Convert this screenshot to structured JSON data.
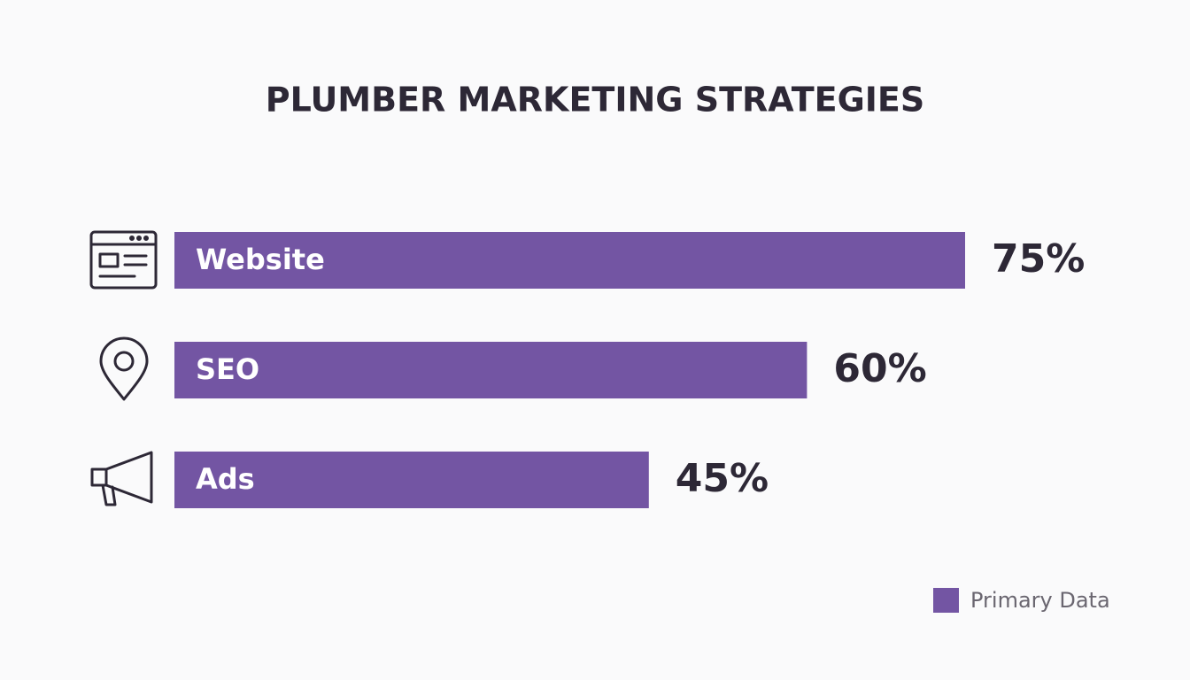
{
  "chart_data": {
    "type": "hbar",
    "title": "PLUMBER MARKETING STRATEGIES",
    "categories": [
      "Website",
      "SEO",
      "Ads"
    ],
    "series": [
      {
        "name": "Primary Data",
        "color": "#7355a3",
        "values": [
          75,
          60,
          45
        ],
        "value_labels": [
          "75%",
          "60%",
          "45%"
        ]
      }
    ],
    "legend": "bottom-right"
  }
}
